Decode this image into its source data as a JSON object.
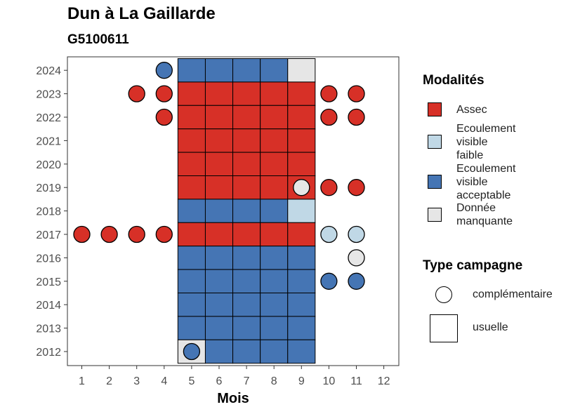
{
  "chart_data": {
    "type": "heatmap",
    "title": "Dun à La Gaillarde",
    "subtitle": "G5100611",
    "xlabel": "Mois",
    "ylabel": "",
    "x_ticks": [
      "1",
      "2",
      "3",
      "4",
      "5",
      "6",
      "7",
      "8",
      "9",
      "10",
      "11",
      "12"
    ],
    "y_ticks": [
      "2012",
      "2013",
      "2014",
      "2015",
      "2016",
      "2017",
      "2018",
      "2019",
      "2020",
      "2021",
      "2022",
      "2023",
      "2024"
    ],
    "legend_modalites_title": "Modalités",
    "legend_type_title": "Type campagne",
    "modalites": [
      {
        "key": "A",
        "label": "Assec",
        "color": "#d73027"
      },
      {
        "key": "F",
        "label": "Ecoulement visible faible",
        "color": "#c0d8e6"
      },
      {
        "key": "V",
        "label": "Ecoulement visible acceptable",
        "color": "#4575b4"
      },
      {
        "key": "M",
        "label": "Donnée manquante",
        "color": "#e6e6e6"
      }
    ],
    "types": [
      {
        "key": "complementaire",
        "label": "complémentaire"
      },
      {
        "key": "usuelle",
        "label": "usuelle"
      }
    ],
    "usuelle": [
      {
        "year": 2024,
        "months": [
          "V",
          "V",
          "V",
          "V",
          "M"
        ]
      },
      {
        "year": 2023,
        "months": [
          "A",
          "A",
          "A",
          "A",
          "A"
        ]
      },
      {
        "year": 2022,
        "months": [
          "A",
          "A",
          "A",
          "A",
          "A"
        ]
      },
      {
        "year": 2021,
        "months": [
          "A",
          "A",
          "A",
          "A",
          "A"
        ]
      },
      {
        "year": 2020,
        "months": [
          "A",
          "A",
          "A",
          "A",
          "A"
        ]
      },
      {
        "year": 2019,
        "months": [
          "A",
          "A",
          "A",
          "A",
          "A"
        ]
      },
      {
        "year": 2018,
        "months": [
          "V",
          "V",
          "V",
          "V",
          "F"
        ]
      },
      {
        "year": 2017,
        "months": [
          "A",
          "A",
          "A",
          "A",
          "A"
        ]
      },
      {
        "year": 2016,
        "months": [
          "V",
          "V",
          "V",
          "V",
          "V"
        ]
      },
      {
        "year": 2015,
        "months": [
          "V",
          "V",
          "V",
          "V",
          "V"
        ]
      },
      {
        "year": 2014,
        "months": [
          "V",
          "V",
          "V",
          "V",
          "V"
        ]
      },
      {
        "year": 2013,
        "months": [
          "V",
          "V",
          "V",
          "V",
          "V"
        ]
      },
      {
        "year": 2012,
        "months": [
          "M",
          "V",
          "V",
          "V",
          "V"
        ]
      }
    ],
    "usuelle_month_start": 5,
    "complementaire": [
      {
        "year": 2024,
        "month": 4,
        "m": "V"
      },
      {
        "year": 2023,
        "month": 3,
        "m": "A"
      },
      {
        "year": 2023,
        "month": 4,
        "m": "A"
      },
      {
        "year": 2023,
        "month": 10,
        "m": "A"
      },
      {
        "year": 2023,
        "month": 11,
        "m": "A"
      },
      {
        "year": 2022,
        "month": 4,
        "m": "A"
      },
      {
        "year": 2022,
        "month": 10,
        "m": "A"
      },
      {
        "year": 2022,
        "month": 11,
        "m": "A"
      },
      {
        "year": 2019,
        "month": 9,
        "m": "M"
      },
      {
        "year": 2019,
        "month": 10,
        "m": "A"
      },
      {
        "year": 2019,
        "month": 11,
        "m": "A"
      },
      {
        "year": 2017,
        "month": 1,
        "m": "A"
      },
      {
        "year": 2017,
        "month": 2,
        "m": "A"
      },
      {
        "year": 2017,
        "month": 3,
        "m": "A"
      },
      {
        "year": 2017,
        "month": 4,
        "m": "A"
      },
      {
        "year": 2017,
        "month": 10,
        "m": "F"
      },
      {
        "year": 2017,
        "month": 11,
        "m": "F"
      },
      {
        "year": 2016,
        "month": 11,
        "m": "M"
      },
      {
        "year": 2015,
        "month": 10,
        "m": "V"
      },
      {
        "year": 2015,
        "month": 11,
        "m": "V"
      },
      {
        "year": 2012,
        "month": 5,
        "m": "V"
      }
    ]
  }
}
